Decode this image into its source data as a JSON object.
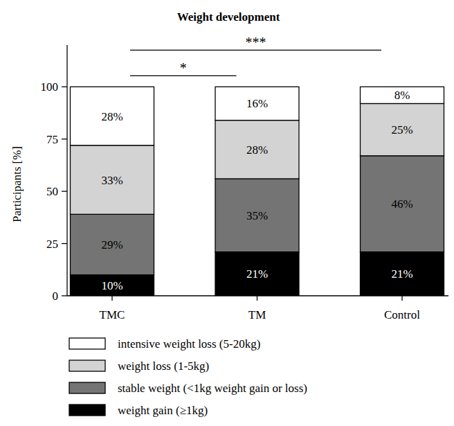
{
  "chart_data": {
    "type": "bar",
    "stacked": true,
    "data_labels": true,
    "legend": "bottom",
    "title": "Weight development",
    "y_label": "Participants [%]",
    "categories": [
      "TMC",
      "TM",
      "Control"
    ],
    "ylim": [
      0,
      120
    ],
    "yticks": [
      0,
      25,
      50,
      75,
      100
    ],
    "series": [
      {
        "name": "weight gain (≥1kg)",
        "color": "#000000",
        "values": [
          10,
          21,
          21
        ],
        "value_labels": [
          "10%",
          "21%",
          "21%"
        ]
      },
      {
        "name": "stable weight (<1kg weight gain or loss)",
        "color": "#747474",
        "values": [
          29,
          35,
          46
        ],
        "value_labels": [
          "29%",
          "35%",
          "46%"
        ]
      },
      {
        "name": "weight loss (1-5kg)",
        "color": "#d3d3d3",
        "values": [
          33,
          28,
          25
        ],
        "value_labels": [
          "33%",
          "28%",
          "25%"
        ]
      },
      {
        "name": "intensive weight loss (5-20kg)",
        "color": "#ffffff",
        "values": [
          28,
          16,
          8
        ],
        "value_labels": [
          "28%",
          "16%",
          "8%"
        ]
      }
    ],
    "annotations": [
      {
        "text": "*",
        "from": "TMC",
        "to": "TM"
      },
      {
        "text": "***",
        "from": "TMC",
        "to": "Control"
      }
    ]
  }
}
